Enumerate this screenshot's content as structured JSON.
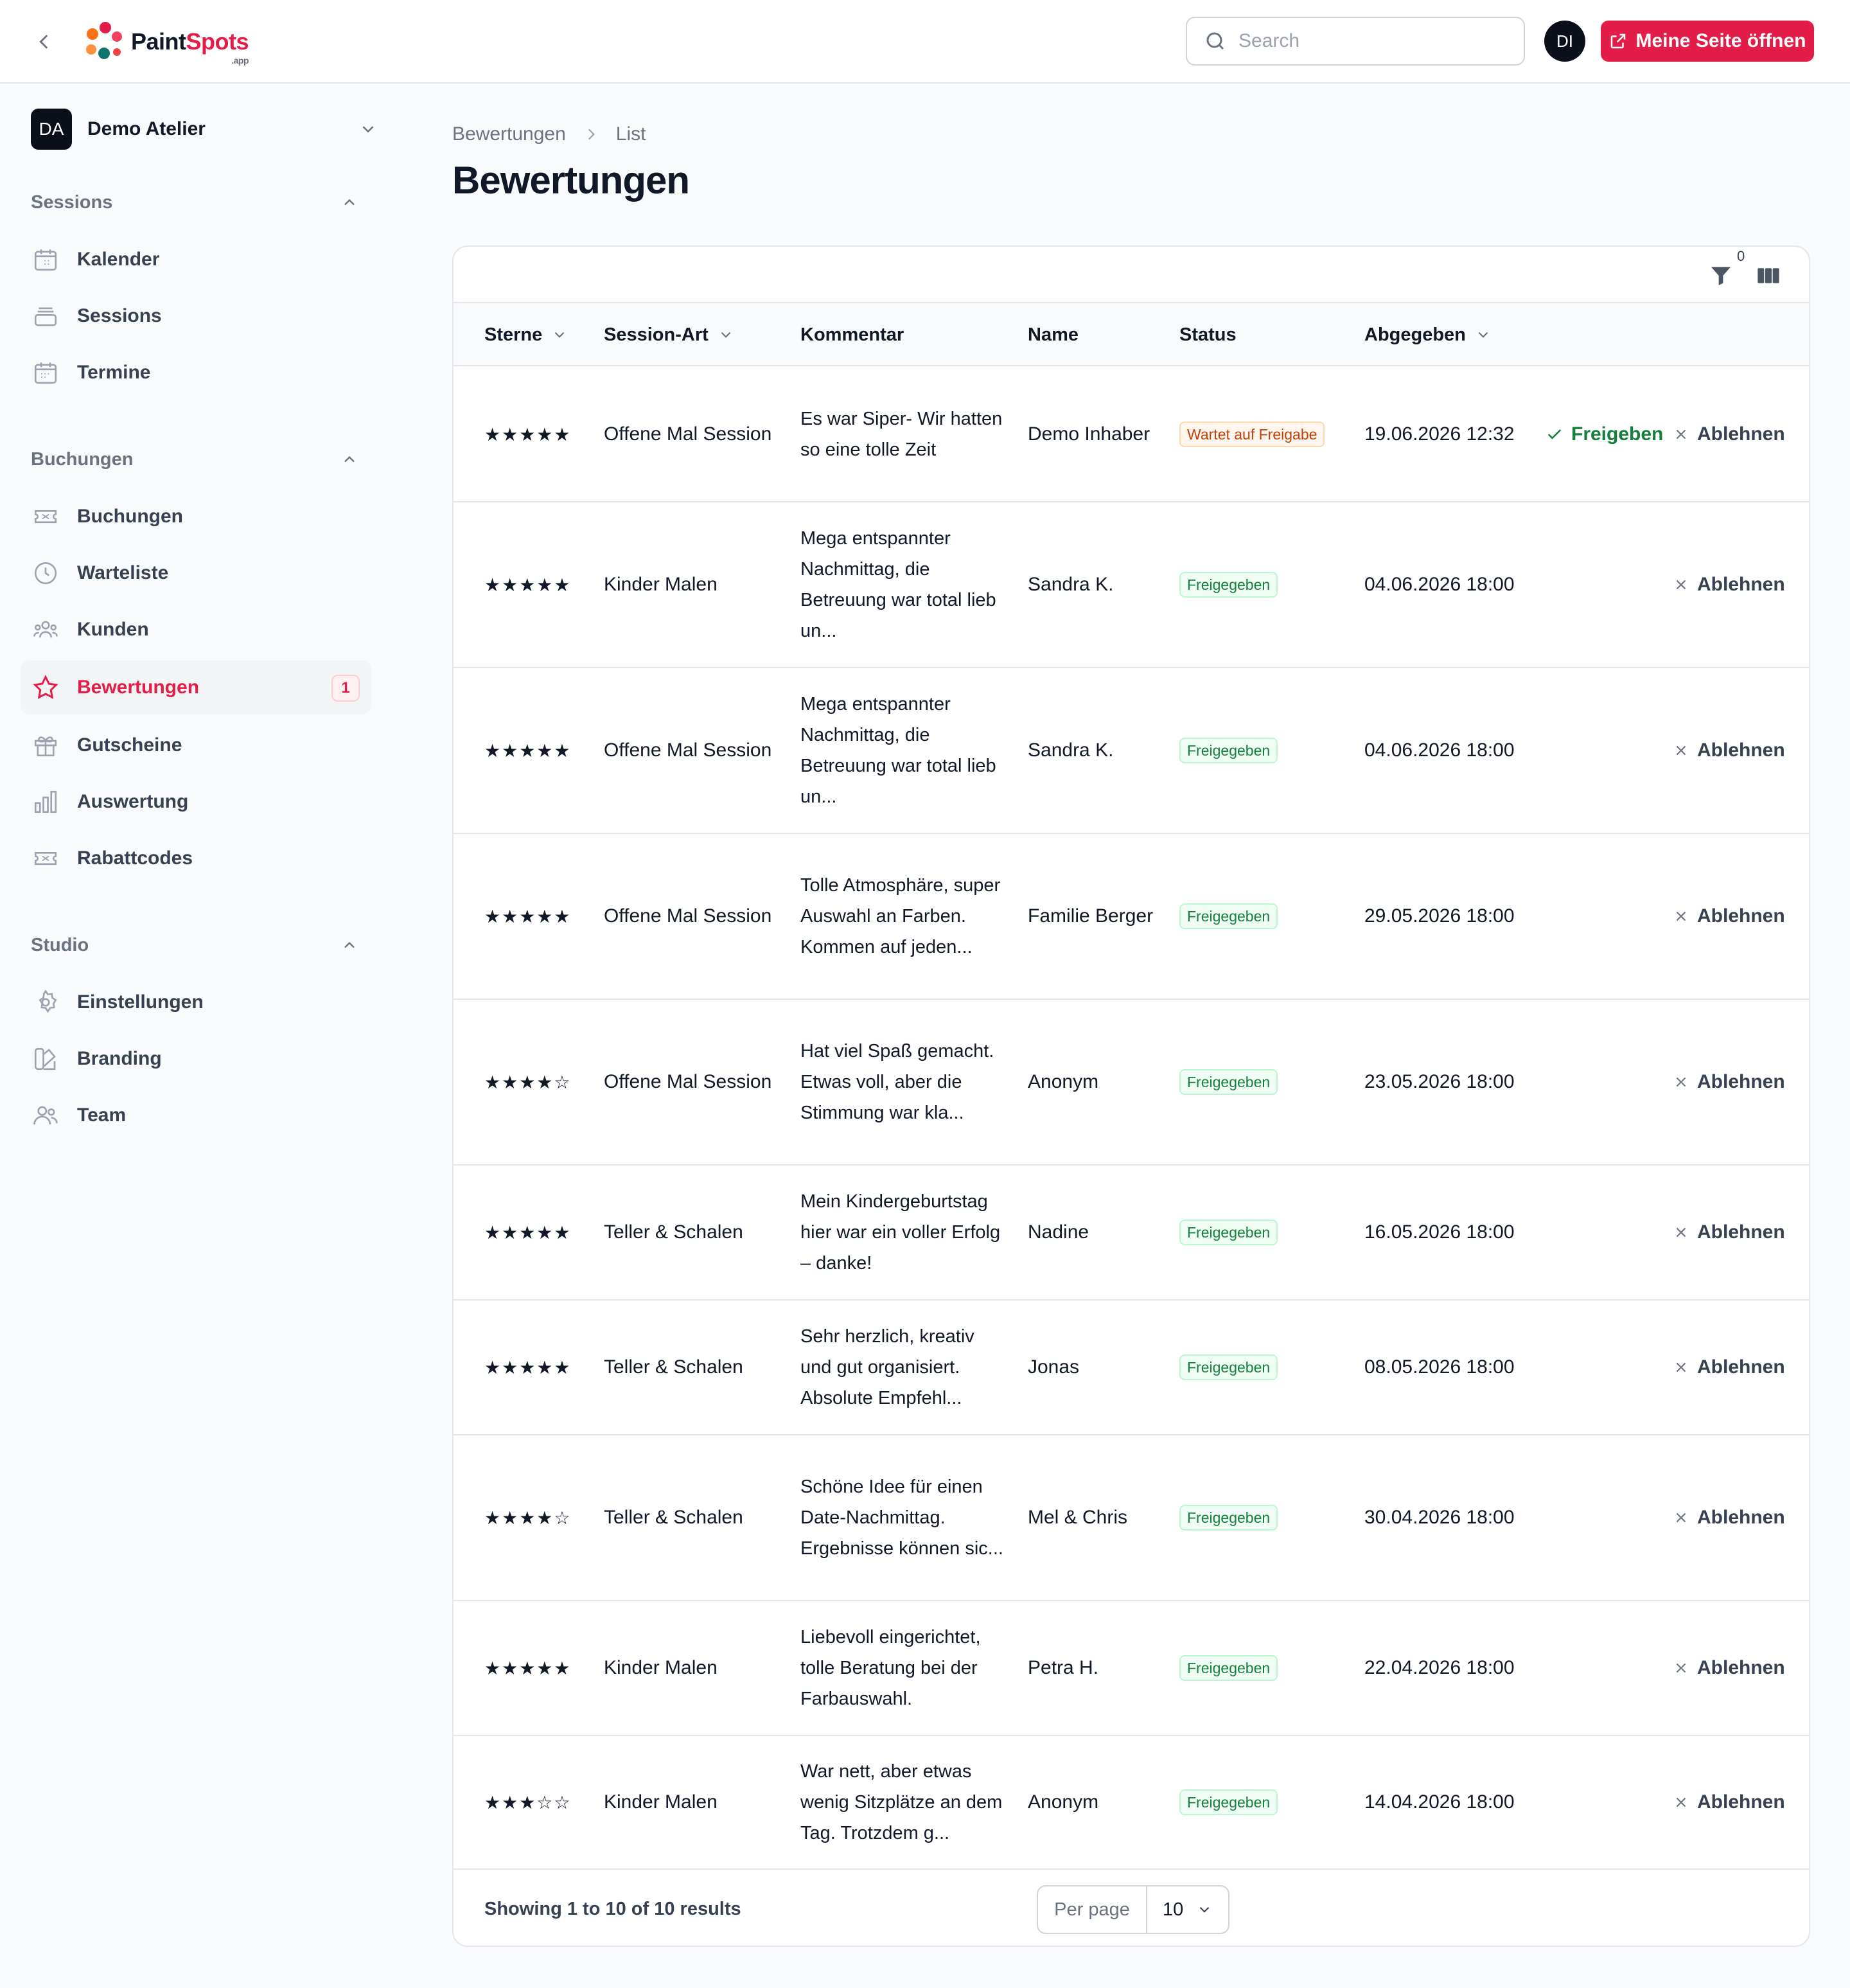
{
  "header": {
    "logo_main": "Paint",
    "logo_accent": "Spots",
    "logo_sub": ".app",
    "search_placeholder": "Search",
    "user_initials": "DI",
    "cta_label": "Meine Seite öffnen"
  },
  "sidebar": {
    "tenant_initials": "DA",
    "tenant_name": "Demo Atelier",
    "groups": [
      {
        "label": "Sessions",
        "items": [
          {
            "label": "Kalender",
            "icon": "calendar-icon"
          },
          {
            "label": "Sessions",
            "icon": "inbox-stack-icon"
          },
          {
            "label": "Termine",
            "icon": "calendar-icon"
          }
        ]
      },
      {
        "label": "Buchungen",
        "items": [
          {
            "label": "Buchungen",
            "icon": "ticket-icon"
          },
          {
            "label": "Warteliste",
            "icon": "clock-icon"
          },
          {
            "label": "Kunden",
            "icon": "user-group-icon"
          },
          {
            "label": "Bewertungen",
            "icon": "star-icon",
            "active": true,
            "badge": "1"
          },
          {
            "label": "Gutscheine",
            "icon": "gift-icon"
          },
          {
            "label": "Auswertung",
            "icon": "chart-bar-icon"
          },
          {
            "label": "Rabattcodes",
            "icon": "ticket-icon"
          }
        ]
      },
      {
        "label": "Studio",
        "items": [
          {
            "label": "Einstellungen",
            "icon": "gear-icon"
          },
          {
            "label": "Branding",
            "icon": "swatch-icon"
          },
          {
            "label": "Team",
            "icon": "users-icon"
          }
        ]
      }
    ]
  },
  "breadcrumb": {
    "parent": "Bewertungen",
    "current": "List"
  },
  "page_title": "Bewertungen",
  "table": {
    "filter_count": "0",
    "columns": {
      "stars": "Sterne",
      "session": "Session-Art",
      "comment": "Kommentar",
      "name": "Name",
      "status": "Status",
      "date": "Abgegeben"
    },
    "approve_label": "Freigeben",
    "reject_label": "Ablehnen",
    "rows": [
      {
        "stars": "★★★★★",
        "session": "Offene Mal Session",
        "comment": "Es war Siper- Wir hatten so eine tolle Zeit",
        "name": "Demo Inhaber",
        "status": "Wartet auf Freigabe",
        "status_kind": "pending",
        "date": "19.06.2026 12:32",
        "can_approve": true
      },
      {
        "stars": "★★★★★",
        "session": "Kinder Malen",
        "comment": "Mega entspannter Nachmittag, die Betreuung war total lieb un...",
        "name": "Sandra K.",
        "status": "Freigegeben",
        "status_kind": "ok",
        "date": "04.06.2026 18:00",
        "can_approve": false
      },
      {
        "stars": "★★★★★",
        "session": "Offene Mal Session",
        "comment": "Mega entspannter Nachmittag, die Betreuung war total lieb un...",
        "name": "Sandra K.",
        "status": "Freigegeben",
        "status_kind": "ok",
        "date": "04.06.2026 18:00",
        "can_approve": false
      },
      {
        "stars": "★★★★★",
        "session": "Offene Mal Session",
        "comment": "Tolle Atmosphäre, super Auswahl an Farben. Kommen auf jeden...",
        "name": "Familie Berger",
        "status": "Freigegeben",
        "status_kind": "ok",
        "date": "29.05.2026 18:00",
        "can_approve": false
      },
      {
        "stars": "★★★★☆",
        "session": "Offene Mal Session",
        "comment": "Hat viel Spaß gemacht. Etwas voll, aber die Stimmung war kla...",
        "name": "Anonym",
        "status": "Freigegeben",
        "status_kind": "ok",
        "date": "23.05.2026 18:00",
        "can_approve": false
      },
      {
        "stars": "★★★★★",
        "session": "Teller & Schalen",
        "comment": "Mein Kindergeburtstag hier war ein voller Erfolg – danke!",
        "name": "Nadine",
        "status": "Freigegeben",
        "status_kind": "ok",
        "date": "16.05.2026 18:00",
        "can_approve": false
      },
      {
        "stars": "★★★★★",
        "session": "Teller & Schalen",
        "comment": "Sehr herzlich, kreativ und gut organisiert. Absolute Empfehl...",
        "name": "Jonas",
        "status": "Freigegeben",
        "status_kind": "ok",
        "date": "08.05.2026 18:00",
        "can_approve": false
      },
      {
        "stars": "★★★★☆",
        "session": "Teller & Schalen",
        "comment": "Schöne Idee für einen Date-Nachmittag. Ergebnisse können sic...",
        "name": "Mel & Chris",
        "status": "Freigegeben",
        "status_kind": "ok",
        "date": "30.04.2026 18:00",
        "can_approve": false
      },
      {
        "stars": "★★★★★",
        "session": "Kinder Malen",
        "comment": "Liebevoll eingerichtet, tolle Beratung bei der Farbauswahl.",
        "name": "Petra H.",
        "status": "Freigegeben",
        "status_kind": "ok",
        "date": "22.04.2026 18:00",
        "can_approve": false
      },
      {
        "stars": "★★★☆☆",
        "session": "Kinder Malen",
        "comment": "War nett, aber etwas wenig Sitzplätze an dem Tag. Trotzdem g...",
        "name": "Anonym",
        "status": "Freigegeben",
        "status_kind": "ok",
        "date": "14.04.2026 18:00",
        "can_approve": false
      }
    ]
  },
  "footer": {
    "summary": "Showing 1 to 10 of 10 results",
    "per_page_label": "Per page",
    "per_page_value": "10"
  }
}
